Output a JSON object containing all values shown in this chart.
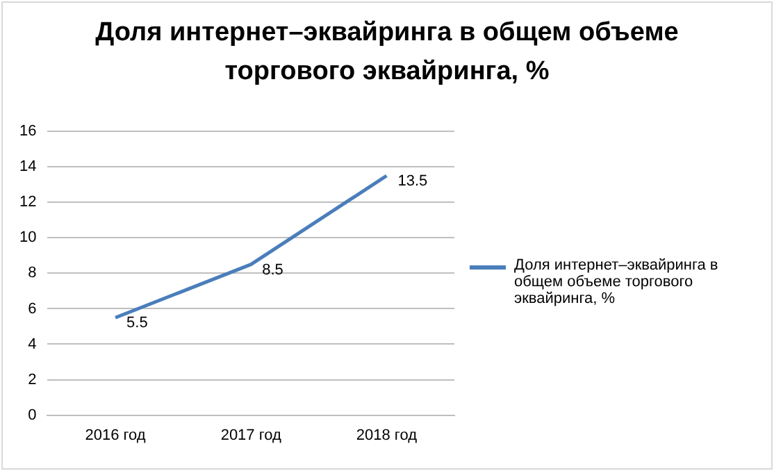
{
  "chart_data": {
    "type": "line",
    "title": "Доля интернет–эквайринга в общем объеме торгового эквайринга, %",
    "categories": [
      "2016 год",
      "2017 год",
      "2018 год"
    ],
    "series": [
      {
        "name": "Доля интернет–эквайринга в общем объеме торгового эквайринга, %",
        "color": "#4a7ebb",
        "values": [
          5.5,
          8.5,
          13.5
        ]
      }
    ],
    "ylim": [
      0,
      16
    ],
    "yticks": [
      0,
      2,
      4,
      6,
      8,
      10,
      12,
      14,
      16
    ],
    "grid": "y",
    "legend": "right",
    "data_labels": true,
    "marker": "none",
    "line_style": "solid"
  }
}
